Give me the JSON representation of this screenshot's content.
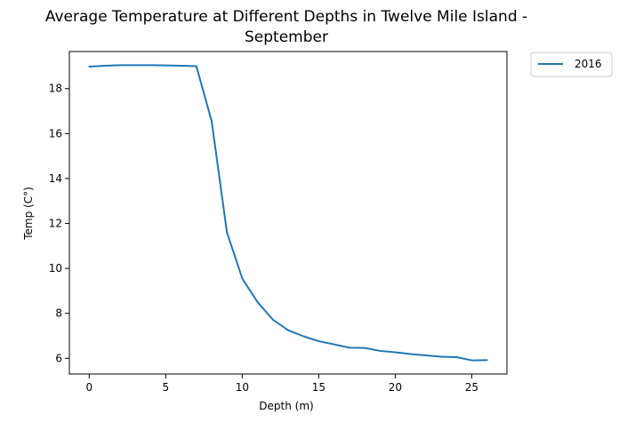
{
  "chart_data": {
    "type": "line",
    "title_lines": [
      "Average Temperature at Different Depths in Twelve Mile Island -",
      "September"
    ],
    "xlabel": "Depth (m)",
    "ylabel": "Temp (C°)",
    "xlim": [
      -1.3,
      27.3
    ],
    "ylim": [
      5.3,
      19.65
    ],
    "xticks": [
      0,
      5,
      10,
      15,
      20,
      25
    ],
    "yticks": [
      6,
      8,
      10,
      12,
      14,
      16,
      18
    ],
    "grid": false,
    "legend_position": "outside-top-right",
    "series": [
      {
        "name": "2016",
        "color": "#1f77b4",
        "x": [
          0,
          1,
          2,
          3,
          4,
          5,
          6,
          7,
          8,
          9,
          10,
          11,
          12,
          13,
          14,
          15,
          16,
          17,
          18,
          19,
          20,
          21,
          22,
          23,
          24,
          25,
          26
        ],
        "y": [
          18.98,
          19.02,
          19.04,
          19.04,
          19.04,
          19.03,
          19.02,
          19.0,
          16.55,
          11.6,
          9.55,
          8.5,
          7.72,
          7.25,
          6.98,
          6.76,
          6.62,
          6.47,
          6.46,
          6.33,
          6.27,
          6.19,
          6.13,
          6.07,
          6.05,
          5.91,
          5.92
        ]
      }
    ]
  }
}
